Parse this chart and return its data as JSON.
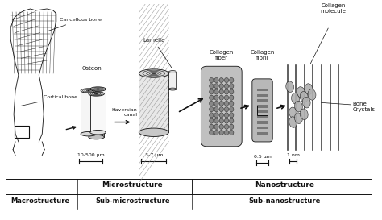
{
  "background_color": "#ffffff",
  "text_color": "#111111",
  "labels": {
    "cancellous_bone": "Cancellous bone",
    "cortical_bone": "Cortical bone",
    "osteon": "Osteon",
    "lamella": "Lamella",
    "haversian_canal": "Haversian\ncanal",
    "collagen_fiber": "Collagen\nfiber",
    "collagen_fibril": "Collagen\nfibril",
    "collagen_molecule": "Collagen\nmolecule",
    "bone_crystals": "Bone\nCrystals",
    "scale1": "10-500 μm",
    "scale2": "3-7 μm",
    "scale3": "0.5 μm",
    "scale4": "1 nm",
    "macrostructure": "Macrostructure",
    "microstructure": "Microstructure",
    "sub_microstructure": "Sub-microstructure",
    "nanostructure": "Nanostructure",
    "sub_nanostructure": "Sub-nanostructure"
  }
}
